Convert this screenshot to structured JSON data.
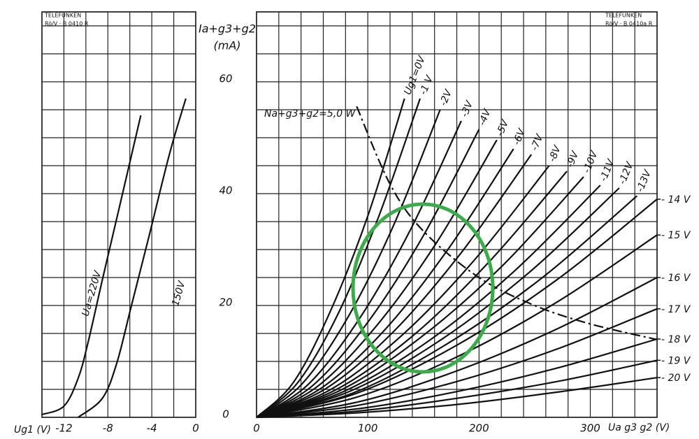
{
  "chart_data": [
    {
      "type": "line",
      "header": [
        "TELEFUNKEN",
        "Rö/V · B 0410 R"
      ],
      "x_label": "Ug1 (V)",
      "xlim": [
        -14,
        0
      ],
      "xticks": [
        -12,
        -8,
        -4,
        0
      ],
      "x_grid": [
        -14,
        -12,
        -10,
        -8,
        -6,
        -4,
        -2,
        0
      ],
      "ylim": [
        0,
        72.5
      ],
      "y_grid": [
        0,
        5,
        10,
        15,
        20,
        25,
        30,
        35,
        40,
        45,
        50,
        55,
        60,
        65,
        70
      ],
      "series": [
        {
          "name": "Ua=220V",
          "color": "#111111",
          "x": [
            -14,
            -12,
            -10.7,
            -9.8,
            -8.5,
            -6.9,
            -5
          ],
          "values": [
            0.5,
            2,
            7,
            13.4,
            24.6,
            38,
            54
          ]
        },
        {
          "name": "150V",
          "color": "#111111",
          "x": [
            -10.7,
            -8.5,
            -7.2,
            -5.9,
            -4.3,
            -2.4,
            -0.9
          ],
          "values": [
            0,
            3.4,
            9.6,
            19.6,
            32,
            47,
            57
          ]
        }
      ]
    },
    {
      "type": "line",
      "header": [
        "TELEFUNKEN",
        "Rö/V · B 0410a R"
      ],
      "y_label": [
        "Ia+g3+g2",
        "(mA)"
      ],
      "x_label": "Ua g3 g2 (V)",
      "xlim": [
        0,
        360
      ],
      "xticks": [
        0,
        100,
        200,
        300
      ],
      "x_grid": [
        0,
        20,
        40,
        60,
        80,
        100,
        120,
        140,
        160,
        180,
        200,
        220,
        240,
        260,
        280,
        300,
        320,
        340,
        360
      ],
      "ylim": [
        0,
        72.5
      ],
      "yticks": [
        0,
        20,
        40,
        60
      ],
      "y_grid": [
        0,
        5,
        10,
        15,
        20,
        25,
        30,
        35,
        40,
        45,
        50,
        55,
        60,
        65,
        70
      ],
      "power_curve": {
        "label": "Na+g3+g2=5,0 W",
        "x": [
          90,
          120,
          150,
          200,
          250,
          300,
          360
        ],
        "values": [
          55.6,
          41.7,
          33.3,
          25,
          20,
          16.7,
          13.9
        ]
      },
      "series": [
        {
          "name": "Ug1=0V",
          "x": [
            0,
            33,
            66,
            100,
            133
          ],
          "values": [
            0,
            6.2,
            18.8,
            36,
            57
          ]
        },
        {
          "name": "-1 V",
          "x": [
            0,
            37,
            74,
            110,
            147
          ],
          "values": [
            0,
            6.2,
            18.8,
            36,
            57
          ]
        },
        {
          "name": "-2V",
          "x": [
            0,
            41,
            83,
            124,
            165
          ],
          "values": [
            0,
            6,
            18.2,
            34.7,
            55
          ]
        },
        {
          "name": "-3V",
          "x": [
            0,
            46,
            92,
            138,
            184
          ],
          "values": [
            0,
            5.8,
            17.5,
            33.4,
            53
          ]
        },
        {
          "name": "-4V",
          "x": [
            0,
            50,
            100,
            150,
            200
          ],
          "values": [
            0,
            5.6,
            17,
            32.5,
            51.5
          ]
        },
        {
          "name": "-5V",
          "x": [
            0,
            54,
            108,
            162,
            216
          ],
          "values": [
            0,
            5.4,
            16.4,
            31.3,
            49.6
          ]
        },
        {
          "name": "-6V",
          "x": [
            0,
            58,
            116,
            173,
            231
          ],
          "values": [
            0,
            5.2,
            15.8,
            30.3,
            48
          ]
        },
        {
          "name": "-7V",
          "x": [
            0,
            62,
            124,
            185,
            247
          ],
          "values": [
            0,
            5.1,
            15.5,
            29.7,
            47
          ]
        },
        {
          "name": "-8V",
          "x": [
            0,
            66,
            132,
            197,
            263
          ],
          "values": [
            0,
            4.9,
            14.9,
            28.4,
            45
          ]
        },
        {
          "name": "-9V",
          "x": [
            0,
            70,
            140,
            209,
            279
          ],
          "values": [
            0,
            4.8,
            14.5,
            27.8,
            44
          ]
        },
        {
          "name": "-10V",
          "x": [
            0,
            74,
            147,
            221,
            294
          ],
          "values": [
            0,
            4.7,
            14.2,
            27.1,
            43
          ]
        },
        {
          "name": "-11V",
          "x": [
            0,
            77,
            155,
            232,
            309
          ],
          "values": [
            0,
            4.5,
            13.7,
            26.2,
            41.5
          ]
        },
        {
          "name": "-12V",
          "x": [
            0,
            82,
            163,
            245,
            326
          ],
          "values": [
            0,
            4.5,
            13.5,
            25.9,
            41
          ]
        },
        {
          "name": "-13V",
          "x": [
            0,
            86,
            171,
            257,
            342
          ],
          "values": [
            0,
            4.3,
            13.1,
            25,
            39.6
          ]
        },
        {
          "name": "- 14 V",
          "x": [
            0,
            90,
            180,
            270,
            360
          ],
          "values": [
            0,
            4.3,
            12.9,
            24.6,
            39
          ]
        },
        {
          "name": "- 15 V",
          "x": [
            0,
            90,
            180,
            270,
            360
          ],
          "values": [
            0,
            3.6,
            10.8,
            20.6,
            32.6
          ]
        },
        {
          "name": "- 16 V",
          "x": [
            0,
            90,
            180,
            270,
            360
          ],
          "values": [
            0,
            2.7,
            8.3,
            15.8,
            25
          ]
        },
        {
          "name": "- 17 V",
          "x": [
            0,
            90,
            180,
            270,
            360
          ],
          "values": [
            0,
            2.1,
            6.4,
            12.2,
            19.4
          ]
        },
        {
          "name": "- 18 V",
          "x": [
            0,
            90,
            180,
            270,
            360
          ],
          "values": [
            0,
            1.5,
            4.6,
            8.8,
            14
          ]
        },
        {
          "name": "- 19 V",
          "x": [
            0,
            90,
            180,
            270,
            360
          ],
          "values": [
            0,
            1.1,
            3.4,
            6.4,
            10.2
          ]
        },
        {
          "name": "- 20 V",
          "x": [
            0,
            90,
            180,
            270,
            360
          ],
          "values": [
            0,
            0.8,
            2.3,
            4.5,
            7.1
          ]
        }
      ]
    }
  ]
}
